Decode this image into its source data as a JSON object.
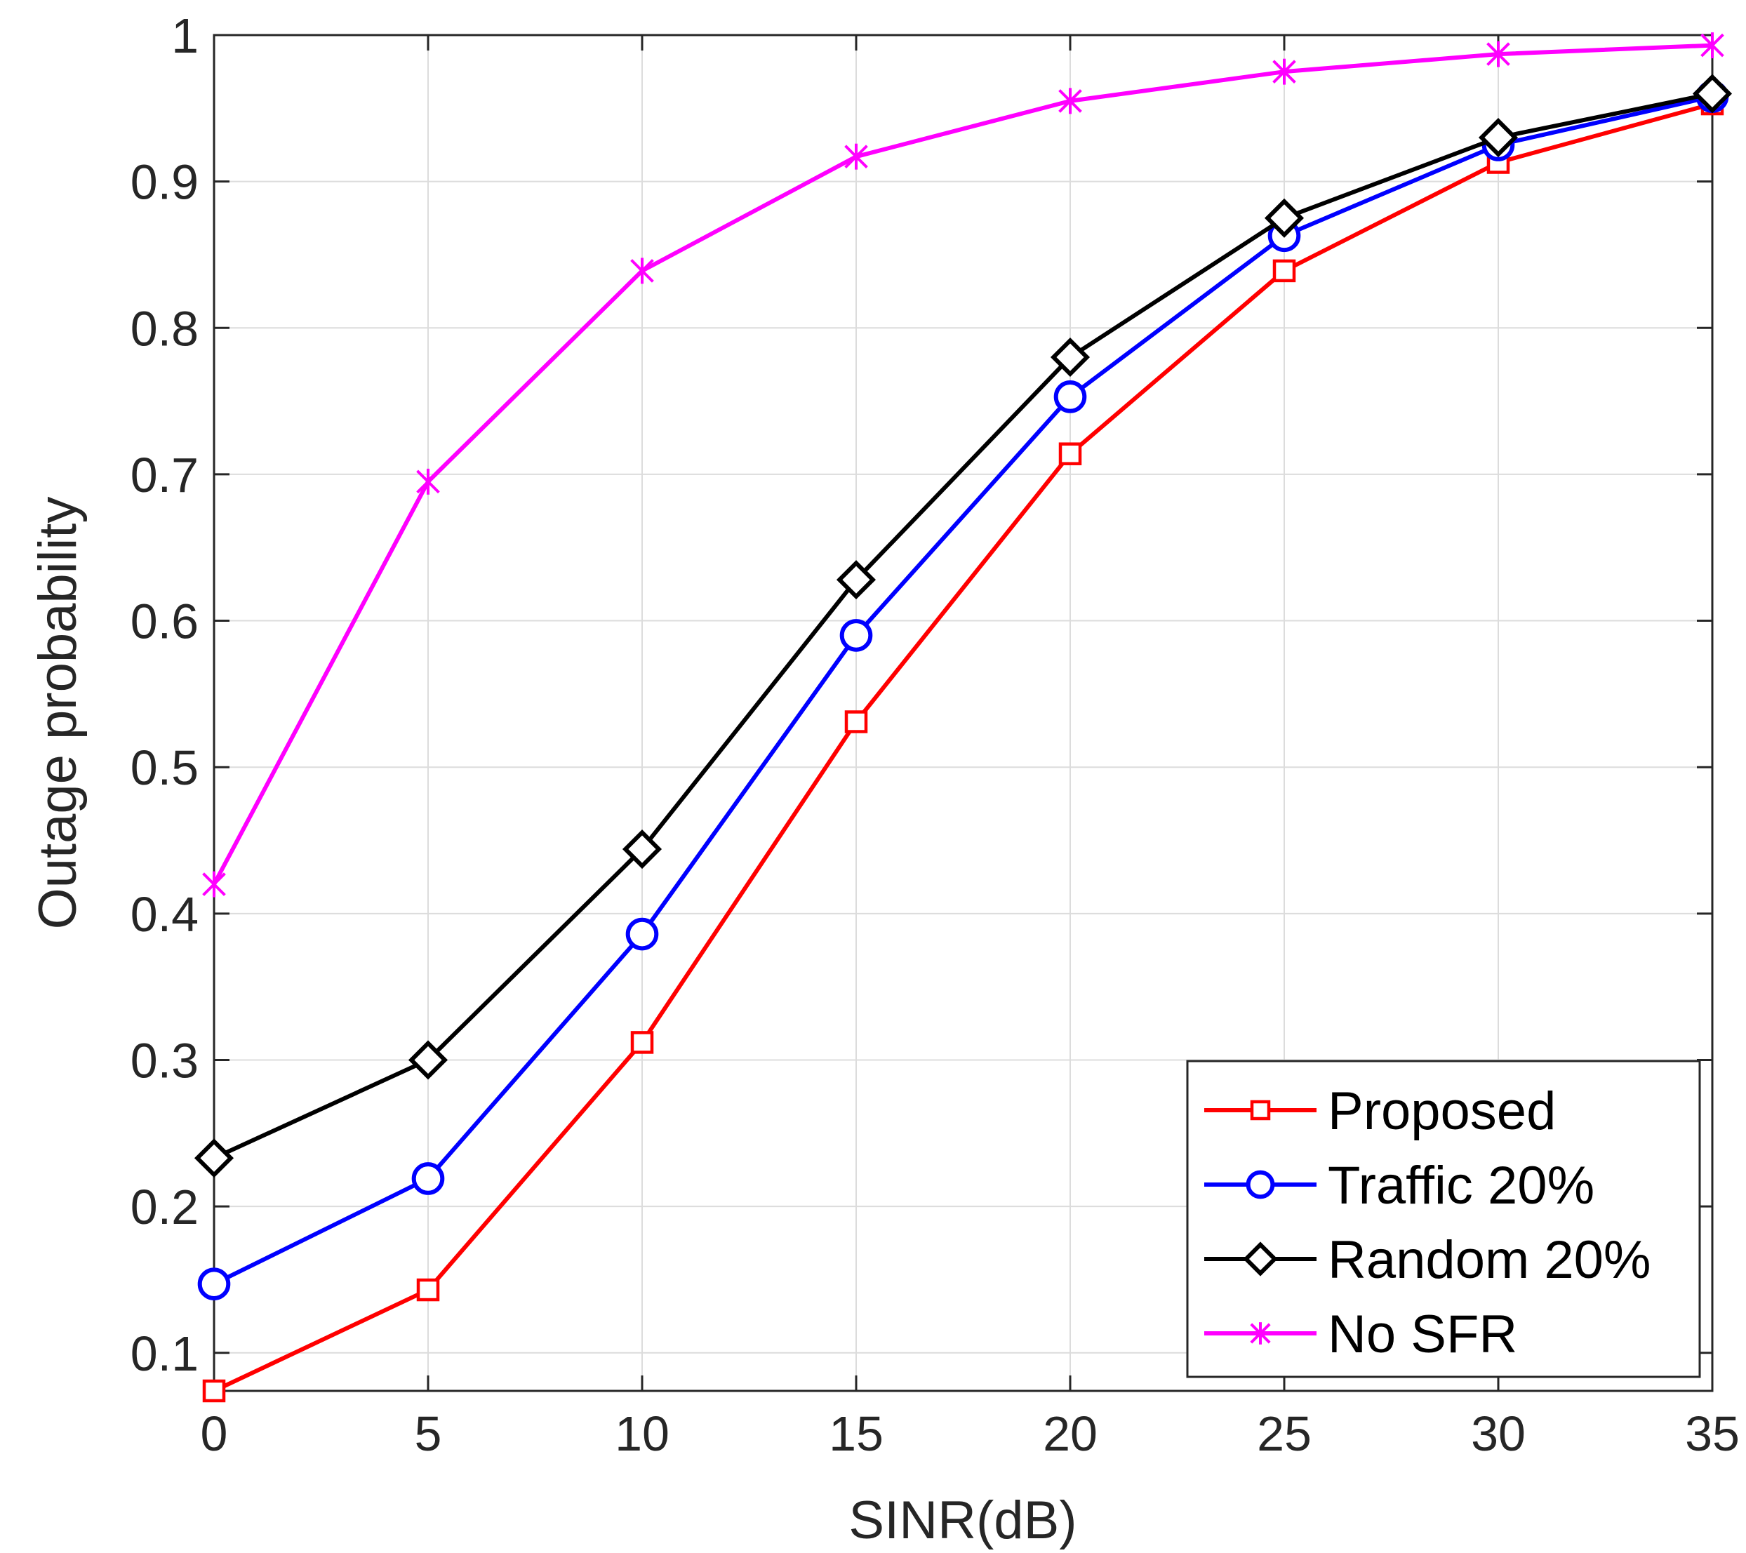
{
  "chart_data": {
    "type": "line",
    "title": "",
    "xlabel": "SINR(dB)",
    "ylabel": "Outage probability",
    "xlim": [
      0,
      35
    ],
    "ylim": [
      0.074,
      1
    ],
    "xticks": [
      0,
      5,
      10,
      15,
      20,
      25,
      30,
      35
    ],
    "yticks": [
      0.1,
      0.2,
      0.3,
      0.4,
      0.5,
      0.6,
      0.7,
      0.8,
      0.9,
      1
    ],
    "ytick_labels": [
      "0.1",
      "0.2",
      "0.3",
      "0.4",
      "0.5",
      "0.6",
      "0.7",
      "0.8",
      "0.9",
      "1"
    ],
    "grid": true,
    "legend_position": "bottom-right",
    "x": [
      0,
      5,
      10,
      15,
      20,
      25,
      30,
      35
    ],
    "series": [
      {
        "name": "Proposed",
        "color": "#ff0000",
        "marker": "square",
        "values": [
          0.074,
          0.143,
          0.312,
          0.531,
          0.714,
          0.839,
          0.913,
          0.953
        ]
      },
      {
        "name": "Traffic 20%",
        "color": "#0000ff",
        "marker": "circle",
        "values": [
          0.147,
          0.219,
          0.386,
          0.59,
          0.753,
          0.863,
          0.925,
          0.958
        ]
      },
      {
        "name": "Random 20%",
        "color": "#000000",
        "marker": "diamond",
        "values": [
          0.233,
          0.3,
          0.444,
          0.628,
          0.78,
          0.875,
          0.93,
          0.96
        ]
      },
      {
        "name": "No SFR",
        "color": "#ff00ff",
        "marker": "asterisk",
        "values": [
          0.42,
          0.695,
          0.839,
          0.917,
          0.955,
          0.975,
          0.987,
          0.993
        ]
      }
    ]
  }
}
